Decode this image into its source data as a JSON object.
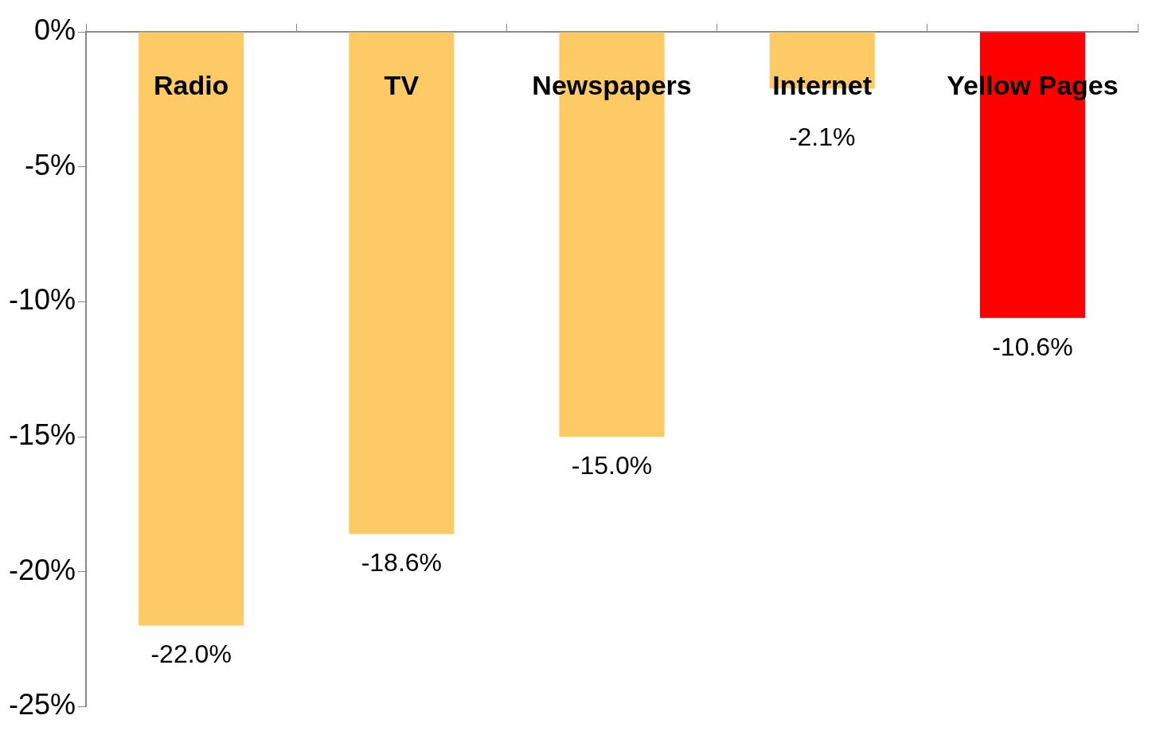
{
  "chart_data": {
    "type": "bar",
    "categories": [
      "Radio",
      "TV",
      "Newspapers",
      "Internet",
      "Yellow Pages"
    ],
    "values": [
      -22.0,
      -18.6,
      -15.0,
      -2.1,
      -10.6
    ],
    "colors": [
      "#fdca66",
      "#fdca66",
      "#fdca66",
      "#fdca66",
      "#ff0000"
    ],
    "value_labels": [
      "-22.0%",
      "-18.6%",
      "-15.0%",
      "-2.1%",
      "-10.6%"
    ],
    "ylim": [
      -25,
      0
    ],
    "yticks": [
      {
        "value": 0,
        "label": "0%"
      },
      {
        "value": -5,
        "label": "-5%"
      },
      {
        "value": -10,
        "label": "-10%"
      },
      {
        "value": -15,
        "label": "-15%"
      },
      {
        "value": -20,
        "label": "-20%"
      },
      {
        "value": -25,
        "label": "-25%"
      }
    ],
    "grid": false,
    "legend": false
  }
}
